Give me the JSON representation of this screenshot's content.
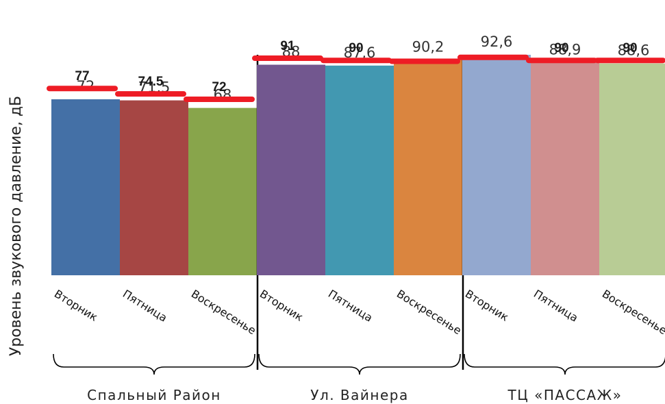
{
  "chart_data": {
    "type": "bar",
    "title": "",
    "xlabel": "",
    "ylabel": "Уровень звукового давление, дБ",
    "groups": [
      {
        "name": "Спальный Район",
        "bars": [
          {
            "day": "Вторник",
            "value": 72,
            "value_label": "72",
            "limit": 77,
            "limit_label": "77",
            "color": "#4470a6"
          },
          {
            "day": "Пятница",
            "value": 71.5,
            "value_label": "71,5",
            "limit": 74.5,
            "limit_label": "74.5",
            "color": "#a64644"
          },
          {
            "day": "Воскресенье",
            "value": 68,
            "value_label": "68",
            "limit": 72,
            "limit_label": "72",
            "color": "#88a54b"
          }
        ]
      },
      {
        "name": "Ул. Вайнера",
        "bars": [
          {
            "day": "Вторник",
            "value": 88,
            "value_label": "88",
            "limit": 91,
            "limit_label": "91",
            "color": "#72578f"
          },
          {
            "day": "Пятница",
            "value": 87.6,
            "value_label": "87,6",
            "limit": 90,
            "limit_label": "90",
            "color": "#4298b1"
          },
          {
            "day": "Воскресенье",
            "value": 90.2,
            "value_label": "90,2",
            "limit": 89.6,
            "limit_label": "",
            "color": "#da853f"
          }
        ]
      },
      {
        "name": "ТЦ «ПАССАЖ»",
        "bars": [
          {
            "day": "Вторник",
            "value": 92.6,
            "value_label": "92,6",
            "limit": 91.4,
            "limit_label": "",
            "color": "#93a8cf"
          },
          {
            "day": "Пятница",
            "value": 88.9,
            "value_label": "88,9",
            "limit": 90,
            "limit_label": "90",
            "color": "#d08f8f"
          },
          {
            "day": "Воскресенье",
            "value": 88.6,
            "value_label": "88,6",
            "limit": 90,
            "limit_label": "90",
            "color": "#b8cc95"
          }
        ]
      }
    ],
    "limit_color": "#ee1c25",
    "ylim": [
      40,
      95
    ],
    "grid": false,
    "legend": "none"
  }
}
